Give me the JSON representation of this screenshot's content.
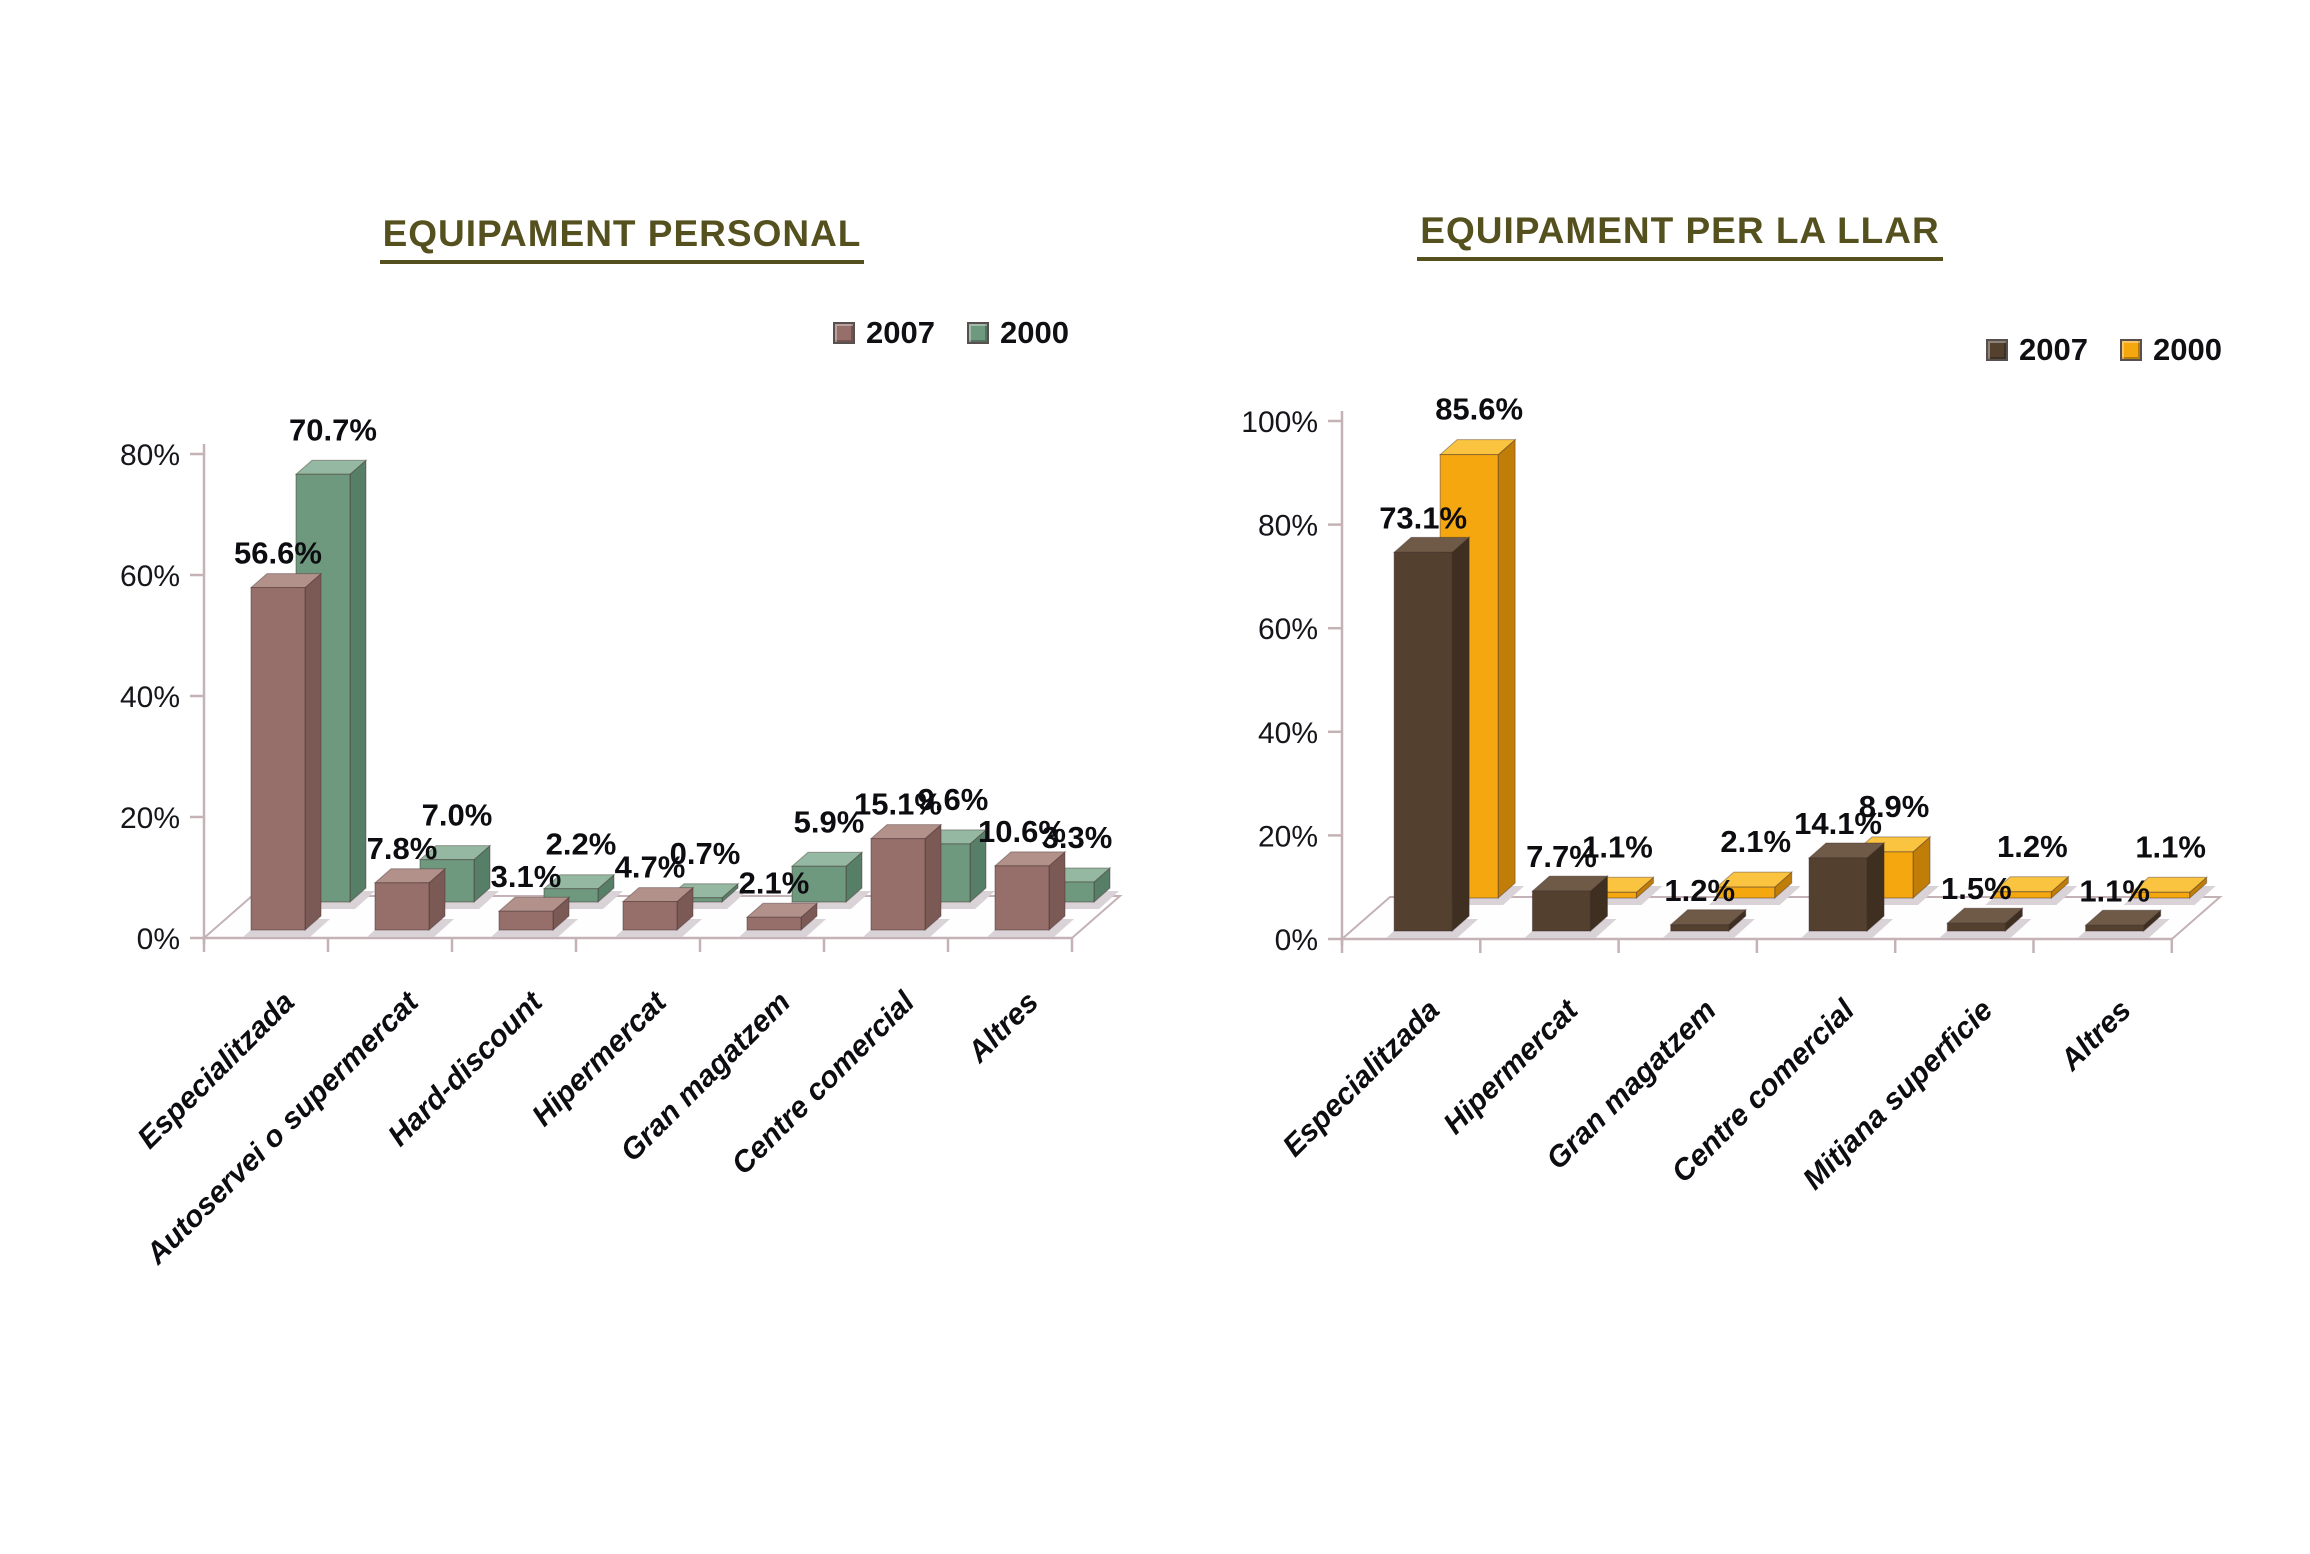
{
  "chart_data": [
    {
      "type": "bar",
      "style": "3d-column",
      "title": "EQUIPAMENT PERSONAL",
      "title_color": "#55511f",
      "categories": [
        "Especialitzada",
        "Autoservei o supermercat",
        "Hard-discount",
        "Hipermercat",
        "Gran magatzem",
        "Centre comercial",
        "Altres"
      ],
      "series": [
        {
          "name": "2007",
          "values": [
            56.6,
            7.8,
            3.1,
            4.7,
            2.1,
            15.1,
            10.6
          ],
          "data_labels": [
            "56.6%",
            "7.8%",
            "3.1%",
            "4.7%",
            "2.1%",
            "15.1%",
            "10.6%"
          ],
          "color_front": "#976f6a",
          "color_top": "#b2918b",
          "color_side": "#7b5954"
        },
        {
          "name": "2000",
          "values": [
            70.7,
            7.0,
            2.2,
            0.7,
            5.9,
            9.6,
            3.3
          ],
          "data_labels": [
            "70.7%",
            "7.0%",
            "2.2%",
            "0.7%",
            "5.9%",
            "9.6%",
            "3.3%"
          ],
          "color_front": "#6f997f",
          "color_top": "#94b8a1",
          "color_side": "#577e67"
        }
      ],
      "y_axis": {
        "min": 0,
        "max": 80,
        "major_step": 20,
        "tick_labels": [
          "0%",
          "20%",
          "40%",
          "60%",
          "80%"
        ]
      },
      "legend_position": "top-right",
      "grid": false,
      "axis_color": "#c4b2b6",
      "text_color": "#15151b",
      "shadow_color": "#d9d2d7"
    },
    {
      "type": "bar",
      "style": "3d-column",
      "title": "EQUIPAMENT PER LA LLAR",
      "title_color": "#55511f",
      "categories": [
        "Especialitzada",
        "Hipermercat",
        "Gran magatzem",
        "Centre comercial",
        "Mitjana superficie",
        "Altres"
      ],
      "series": [
        {
          "name": "2007",
          "values": [
            73.1,
            7.7,
            1.2,
            14.1,
            1.5,
            1.1
          ],
          "data_labels": [
            "73.1%",
            "7.7%",
            "1.2%",
            "14.1%",
            "1.5%",
            "1.1%"
          ],
          "color_front": "#53402f",
          "color_top": "#6e5a47",
          "color_side": "#3e2f21"
        },
        {
          "name": "2000",
          "values": [
            85.6,
            1.1,
            2.1,
            8.9,
            1.2,
            1.1
          ],
          "data_labels": [
            "85.6%",
            "1.1%",
            "2.1%",
            "8.9%",
            "1.2%",
            "1.1%"
          ],
          "color_front": "#f5a70f",
          "color_top": "#fbc440",
          "color_side": "#c07d08"
        }
      ],
      "y_axis": {
        "min": 0,
        "max": 100,
        "major_step": 20,
        "tick_labels": [
          "0%",
          "20%",
          "40%",
          "60%",
          "80%",
          "100%"
        ]
      },
      "legend_position": "top-right",
      "grid": false,
      "axis_color": "#c4b2b6",
      "text_color": "#15151b",
      "shadow_color": "#d9d2d7"
    }
  ]
}
